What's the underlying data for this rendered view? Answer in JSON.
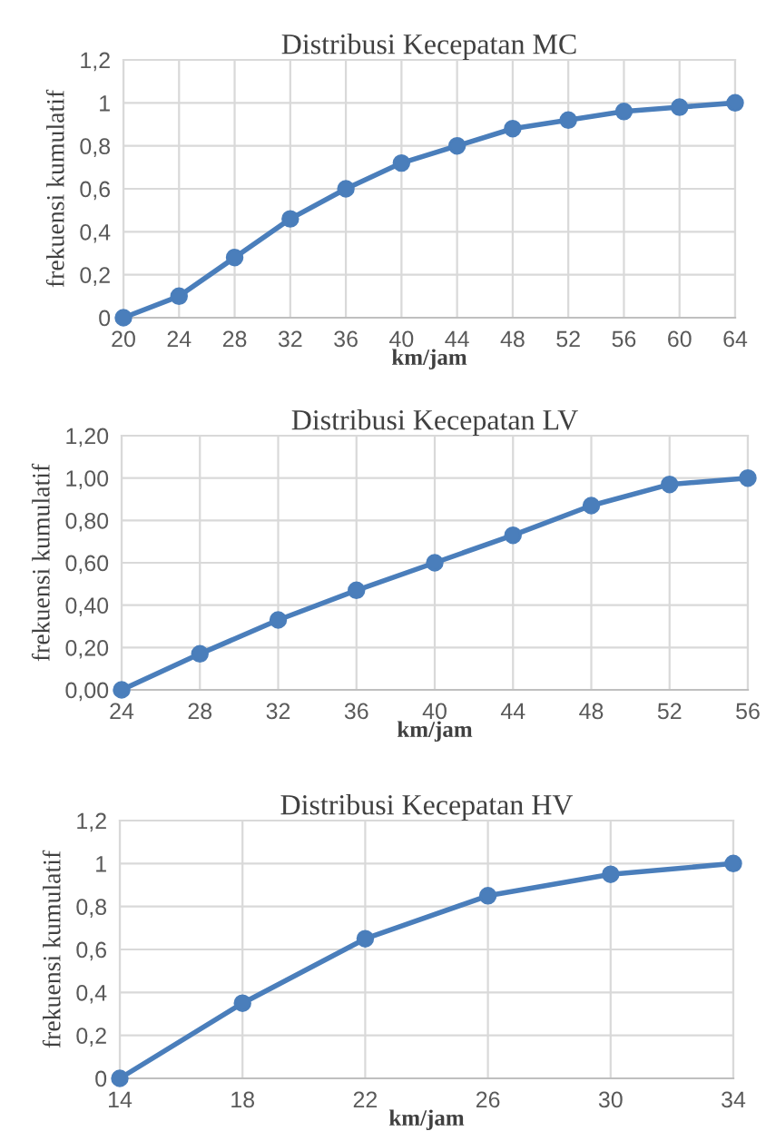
{
  "chart_data": [
    {
      "type": "line",
      "title": "Distribusi Kecepatan MC",
      "xlabel": "km/jam",
      "ylabel": "frekuensi kumulatif",
      "x": [
        20,
        24,
        28,
        32,
        36,
        40,
        44,
        48,
        52,
        56,
        60,
        64
      ],
      "series": [
        {
          "color": "#4a7ebb",
          "values": [
            0,
            0.1,
            0.28,
            0.46,
            0.6,
            0.72,
            0.8,
            0.88,
            0.92,
            0.96,
            0.98,
            1
          ]
        }
      ],
      "xlim": [
        20,
        64
      ],
      "xticks": [
        20,
        24,
        28,
        32,
        36,
        40,
        44,
        48,
        52,
        56,
        60,
        64
      ],
      "ylim": [
        0,
        1.2
      ],
      "yticks": [
        0,
        {
          "value": 0.2,
          "label": "0,2"
        },
        {
          "value": 0.4,
          "label": "0,4"
        },
        {
          "value": 0.6,
          "label": "0,6"
        },
        {
          "value": 0.8,
          "label": "0,8"
        },
        1,
        {
          "value": 1.2,
          "label": "1,2"
        }
      ],
      "grid": true,
      "marker": "circle",
      "line_style": "solid",
      "legend": false
    },
    {
      "type": "line",
      "title": "Distribusi Kecepatan LV",
      "xlabel": "km/jam",
      "ylabel": "frekuensi kumulatif",
      "x": [
        24,
        28,
        32,
        36,
        40,
        44,
        48,
        52,
        56
      ],
      "series": [
        {
          "color": "#4a7ebb",
          "values": [
            0,
            0.17,
            0.33,
            0.47,
            0.6,
            0.73,
            0.87,
            0.97,
            1
          ]
        }
      ],
      "xlim": [
        24,
        56
      ],
      "xticks": [
        24,
        28,
        32,
        36,
        40,
        44,
        48,
        52,
        56
      ],
      "ylim": [
        0,
        1.2
      ],
      "yticks": [
        {
          "value": 0,
          "label": "0,00"
        },
        {
          "value": 0.2,
          "label": "0,20"
        },
        {
          "value": 0.4,
          "label": "0,40"
        },
        {
          "value": 0.6,
          "label": "0,60"
        },
        {
          "value": 0.8,
          "label": "0,80"
        },
        {
          "value": 1,
          "label": "1,00"
        },
        {
          "value": 1.2,
          "label": "1,20"
        }
      ],
      "grid": true,
      "marker": "circle",
      "line_style": "solid",
      "legend": false
    },
    {
      "type": "line",
      "title": "Distribusi Kecepatan HV",
      "xlabel": "km/jam",
      "ylabel": "frekuensi kumulatif",
      "x": [
        14,
        18,
        22,
        26,
        30,
        34
      ],
      "series": [
        {
          "color": "#4a7ebb",
          "values": [
            0,
            0.35,
            0.65,
            0.85,
            0.95,
            1
          ]
        }
      ],
      "xlim": [
        14,
        34
      ],
      "xticks": [
        14,
        18,
        22,
        26,
        30,
        34
      ],
      "ylim": [
        0,
        1.2
      ],
      "yticks": [
        0,
        {
          "value": 0.2,
          "label": "0,2"
        },
        {
          "value": 0.4,
          "label": "0,4"
        },
        {
          "value": 0.6,
          "label": "0,6"
        },
        {
          "value": 0.8,
          "label": "0,8"
        },
        1,
        {
          "value": 1.2,
          "label": "1,2"
        }
      ],
      "grid": true,
      "marker": "circle",
      "line_style": "solid",
      "legend": false
    }
  ]
}
